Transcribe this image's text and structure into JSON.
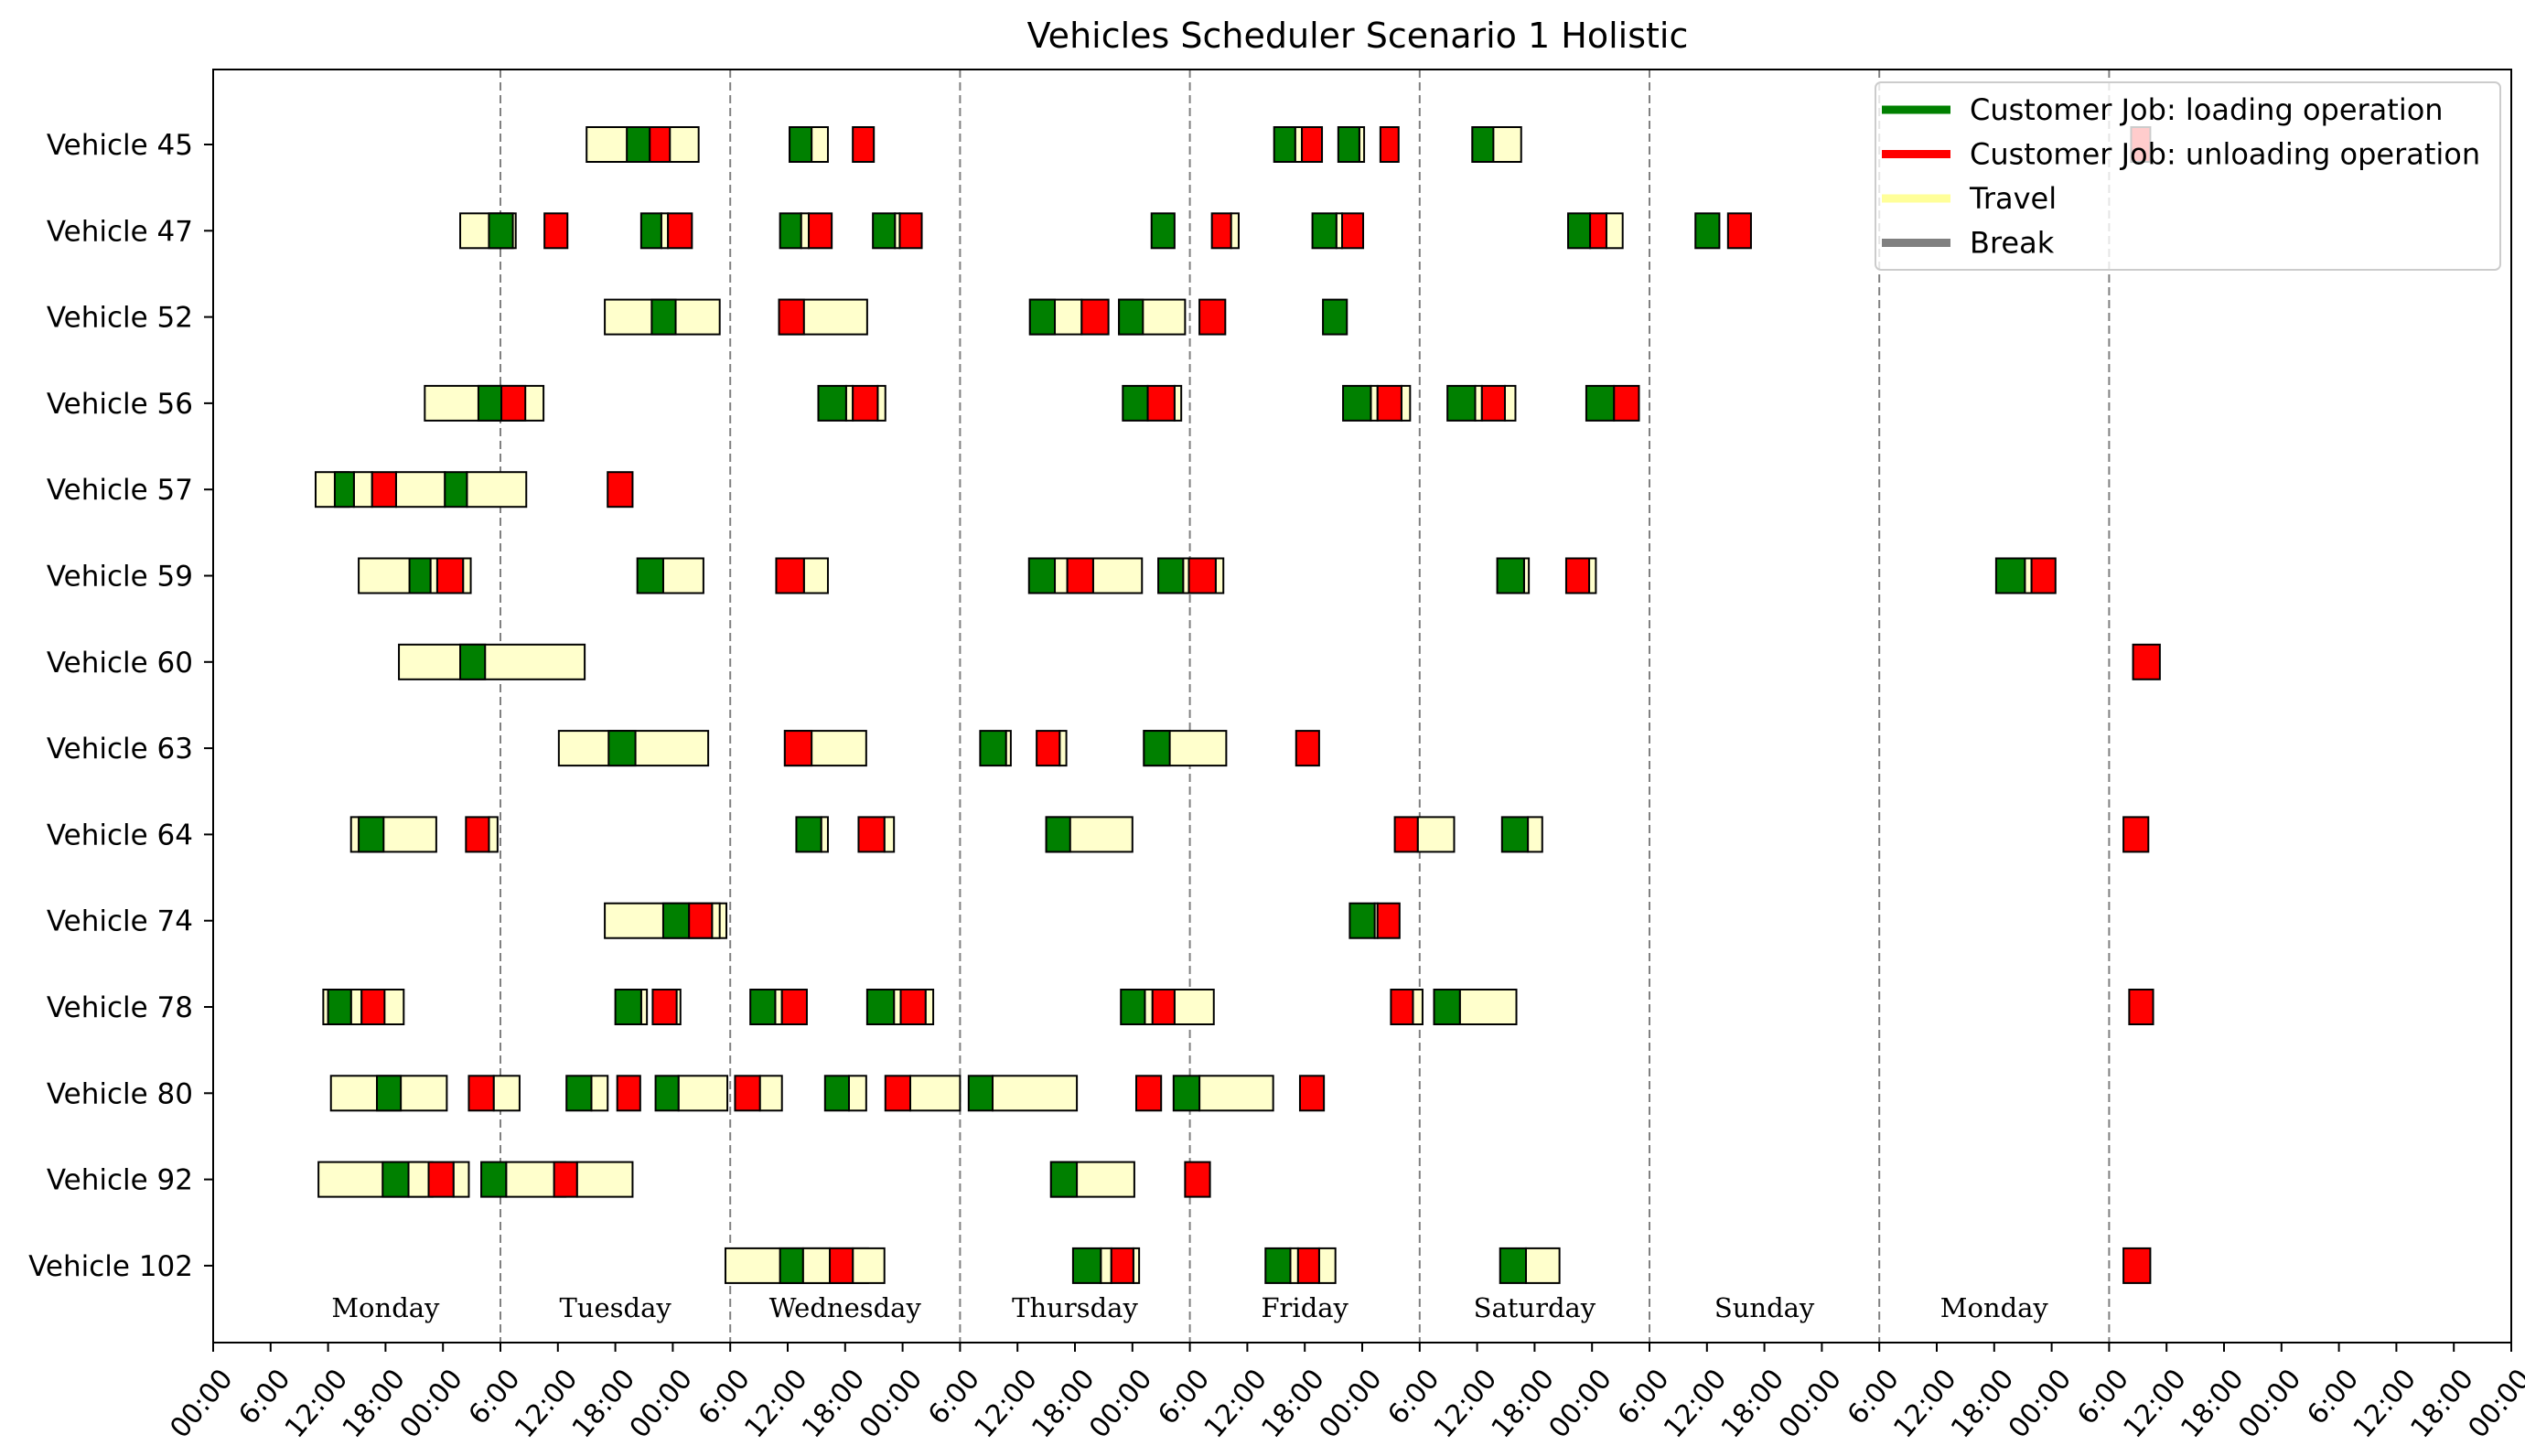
{
  "chart_data": {
    "type": "gantt",
    "title": "Vehicles Scheduler Scenario 1  Holistic",
    "x_unit": "hours from Monday 00:00",
    "xlim": [
      -30,
      210
    ],
    "x_ticks": [
      -30,
      -24,
      -18,
      -12,
      -6,
      0,
      6,
      12,
      18,
      24,
      30,
      36,
      42,
      48,
      54,
      60,
      66,
      72,
      78,
      84,
      90,
      96,
      102,
      108,
      114,
      120,
      126,
      132,
      138,
      144,
      150,
      156,
      162,
      168,
      174,
      180,
      186,
      192,
      198,
      204,
      210
    ],
    "x_tick_labels": [
      "00:00",
      "6:00",
      "12:00",
      "18:00",
      "00:00",
      "6:00",
      "12:00",
      "18:00",
      "00:00",
      "6:00",
      "12:00",
      "18:00",
      "00:00",
      "6:00",
      "12:00",
      "18:00",
      "00:00",
      "6:00",
      "12:00",
      "18:00",
      "00:00",
      "6:00",
      "12:00",
      "18:00",
      "00:00",
      "6:00",
      "12:00",
      "18:00",
      "00:00",
      "6:00",
      "12:00",
      "18:00",
      "00:00",
      "6:00",
      "12:00",
      "18:00",
      "00:00",
      "6:00",
      "12:00",
      "18:00",
      "00:00"
    ],
    "day_dividers": [
      0,
      24,
      48,
      72,
      96,
      120,
      144,
      168
    ],
    "days": [
      {
        "name": "Monday",
        "at": -12
      },
      {
        "name": "Tuesday",
        "at": 12
      },
      {
        "name": "Wednesday",
        "at": 36
      },
      {
        "name": "Thursday",
        "at": 60
      },
      {
        "name": "Friday",
        "at": 84
      },
      {
        "name": "Saturday",
        "at": 108
      },
      {
        "name": "Sunday",
        "at": 132
      },
      {
        "name": "Monday",
        "at": 156
      }
    ],
    "colors": {
      "load": "#008000",
      "unload": "#ff0000",
      "travel": "#ffffcc",
      "edge": "#000000",
      "divider": "#808080"
    },
    "legend": {
      "position": "top-right",
      "entries": [
        {
          "label": "Customer Job: loading operation",
          "color": "#008000"
        },
        {
          "label": "Customer Job: unloading operation",
          "color": "#ff0000"
        },
        {
          "label": "Travel",
          "color": "#ffff99"
        },
        {
          "label": "Break",
          "color": "#808080"
        }
      ]
    },
    "vehicles": [
      {
        "name": "Vehicle 45",
        "segments": [
          [
            "T",
            9,
            20.7
          ],
          [
            "L",
            13.2,
            15.6
          ],
          [
            "U",
            15.6,
            17.7
          ],
          [
            "T",
            30.2,
            34.2
          ],
          [
            "L",
            30.2,
            32.5
          ],
          [
            "U",
            36.8,
            39
          ],
          [
            "L",
            80.8,
            83
          ],
          [
            "T",
            83,
            83.7
          ],
          [
            "U",
            83.7,
            85.8
          ],
          [
            "L",
            87.5,
            89.7
          ],
          [
            "T",
            89.7,
            90.2
          ],
          [
            "U",
            91.9,
            93.8
          ],
          [
            "T",
            101.5,
            106.6
          ],
          [
            "L",
            101.5,
            103.7
          ],
          [
            "U",
            170.3,
            172.3
          ]
        ]
      },
      {
        "name": "Vehicle 47",
        "segments": [
          [
            "T",
            -4.2,
            1.6
          ],
          [
            "L",
            -1.2,
            1.3
          ],
          [
            "U",
            4.6,
            7
          ],
          [
            "L",
            14.7,
            16.8
          ],
          [
            "T",
            16.8,
            17.5
          ],
          [
            "U",
            17.5,
            20
          ],
          [
            "L",
            29.2,
            31.4
          ],
          [
            "T",
            31.4,
            32.2
          ],
          [
            "U",
            32.2,
            34.6
          ],
          [
            "L",
            38.9,
            41.2
          ],
          [
            "T",
            41.2,
            41.7
          ],
          [
            "U",
            41.7,
            44
          ],
          [
            "L",
            68,
            70.4
          ],
          [
            "U",
            74.3,
            76.3
          ],
          [
            "T",
            76.3,
            77.1
          ],
          [
            "L",
            84.8,
            87.3
          ],
          [
            "T",
            87.3,
            87.9
          ],
          [
            "U",
            87.9,
            90.1
          ],
          [
            "L",
            111.5,
            113.8
          ],
          [
            "U",
            113.8,
            115.5
          ],
          [
            "T",
            115.5,
            117.2
          ],
          [
            "L",
            124.8,
            127.3
          ],
          [
            "U",
            128.2,
            130.6
          ]
        ]
      },
      {
        "name": "Vehicle 52",
        "segments": [
          [
            "T",
            10.9,
            22.9
          ],
          [
            "L",
            15.8,
            18.3
          ],
          [
            "T",
            29.1,
            38.3
          ],
          [
            "U",
            29.1,
            31.7
          ],
          [
            "T",
            55.3,
            60.7
          ],
          [
            "L",
            55.3,
            57.9
          ],
          [
            "U",
            60.7,
            63.5
          ],
          [
            "T",
            64.6,
            71.5
          ],
          [
            "L",
            64.6,
            67.1
          ],
          [
            "U",
            73,
            75.7
          ],
          [
            "L",
            85.9,
            88.4
          ]
        ]
      },
      {
        "name": "Vehicle 56",
        "segments": [
          [
            "T",
            -7.9,
            4.5
          ],
          [
            "L",
            -2.3,
            0.1
          ],
          [
            "U",
            0.1,
            2.6
          ],
          [
            "L",
            33.2,
            36.1
          ],
          [
            "T",
            36.1,
            36.8
          ],
          [
            "U",
            36.8,
            39.4
          ],
          [
            "T",
            39.4,
            40.2
          ],
          [
            "L",
            65,
            67.6
          ],
          [
            "U",
            67.6,
            70.4
          ],
          [
            "T",
            70.4,
            71.1
          ],
          [
            "L",
            88,
            90.9
          ],
          [
            "T",
            90.9,
            91.6
          ],
          [
            "U",
            91.6,
            94.1
          ],
          [
            "T",
            94.1,
            95
          ],
          [
            "L",
            98.9,
            101.8
          ],
          [
            "T",
            101.8,
            102.5
          ],
          [
            "U",
            102.5,
            104.9
          ],
          [
            "T",
            104.9,
            106
          ],
          [
            "L",
            113.4,
            116.3
          ],
          [
            "U",
            116.3,
            118.9
          ]
        ]
      },
      {
        "name": "Vehicle 57",
        "segments": [
          [
            "T",
            -19.3,
            -15.8
          ],
          [
            "L",
            -17.3,
            -15.3
          ],
          [
            "T",
            -15.3,
            -13.4
          ],
          [
            "U",
            -13.4,
            -10.9
          ],
          [
            "T",
            -10.9,
            -5.8
          ],
          [
            "L",
            -5.8,
            -3.5
          ],
          [
            "T",
            -3.5,
            2.7
          ],
          [
            "U",
            11.2,
            13.8
          ]
        ]
      },
      {
        "name": "Vehicle 59",
        "segments": [
          [
            "T",
            -14.8,
            -9.3
          ],
          [
            "L",
            -9.5,
            -7.3
          ],
          [
            "T",
            -7.3,
            -6.6
          ],
          [
            "U",
            -6.6,
            -3.9
          ],
          [
            "T",
            -3.9,
            -3.1
          ],
          [
            "L",
            14.3,
            17
          ],
          [
            "T",
            17,
            21.2
          ],
          [
            "U",
            28.8,
            31.7
          ],
          [
            "T",
            31.7,
            34.2
          ],
          [
            "L",
            55.2,
            57.9
          ],
          [
            "T",
            57.9,
            59.2
          ],
          [
            "U",
            59.2,
            61.9
          ],
          [
            "T",
            61.9,
            67
          ],
          [
            "L",
            68.7,
            71.3
          ],
          [
            "T",
            71.3,
            71.9
          ],
          [
            "U",
            71.9,
            74.7
          ],
          [
            "T",
            74.7,
            75.5
          ],
          [
            "L",
            104.1,
            106.9
          ],
          [
            "T",
            106.9,
            107.4
          ],
          [
            "U",
            111.3,
            113.7
          ],
          [
            "T",
            113.7,
            114.4
          ],
          [
            "L",
            156.2,
            159.2
          ],
          [
            "T",
            159.2,
            159.9
          ],
          [
            "U",
            159.9,
            162.4
          ]
        ]
      },
      {
        "name": "Vehicle 60",
        "segments": [
          [
            "T",
            -10.6,
            8.8
          ],
          [
            "L",
            -4.2,
            -1.6
          ],
          [
            "U",
            170.5,
            173.3
          ]
        ]
      },
      {
        "name": "Vehicle 63",
        "segments": [
          [
            "T",
            6.1,
            21.7
          ],
          [
            "L",
            11.3,
            14.1
          ],
          [
            "T",
            29.7,
            38.2
          ],
          [
            "U",
            29.7,
            32.5
          ],
          [
            "L",
            50.1,
            52.8
          ],
          [
            "T",
            52.8,
            53.3
          ],
          [
            "U",
            56,
            58.4
          ],
          [
            "T",
            58.4,
            59.1
          ],
          [
            "T",
            67.2,
            75.8
          ],
          [
            "L",
            67.2,
            69.9
          ],
          [
            "U",
            83.1,
            85.5
          ]
        ]
      },
      {
        "name": "Vehicle 64",
        "segments": [
          [
            "T",
            -15.6,
            -6.7
          ],
          [
            "L",
            -14.8,
            -12.2
          ],
          [
            "U",
            -3.6,
            -1.2
          ],
          [
            "T",
            -1.2,
            -0.3
          ],
          [
            "L",
            30.9,
            33.5
          ],
          [
            "T",
            33.5,
            34.2
          ],
          [
            "U",
            37.4,
            40.1
          ],
          [
            "T",
            40.1,
            41.1
          ],
          [
            "T",
            57,
            66
          ],
          [
            "L",
            57,
            59.5
          ],
          [
            "U",
            93.4,
            95.8
          ],
          [
            "T",
            95.8,
            99.6
          ],
          [
            "L",
            104.6,
            107.3
          ],
          [
            "T",
            107.3,
            108.8
          ],
          [
            "U",
            169.5,
            172.1
          ]
        ]
      },
      {
        "name": "Vehicle 74",
        "segments": [
          [
            "T",
            10.9,
            23.6
          ],
          [
            "L",
            17,
            19.7
          ],
          [
            "U",
            19.7,
            22.1
          ],
          [
            "T",
            22.1,
            22.9
          ],
          [
            "L",
            88.7,
            91.3
          ],
          [
            "T",
            91.3,
            91.6
          ],
          [
            "U",
            91.6,
            93.9
          ]
        ]
      },
      {
        "name": "Vehicle 78",
        "segments": [
          [
            "T",
            -18.5,
            -10.1
          ],
          [
            "L",
            -18,
            -15.6
          ],
          [
            "T",
            -15.6,
            -14.5
          ],
          [
            "U",
            -14.5,
            -12.1
          ],
          [
            "L",
            12,
            14.7
          ],
          [
            "T",
            14.7,
            15.3
          ],
          [
            "U",
            15.9,
            18.4
          ],
          [
            "T",
            18.4,
            18.8
          ],
          [
            "L",
            26.1,
            28.7
          ],
          [
            "T",
            28.7,
            29.4
          ],
          [
            "U",
            29.4,
            32
          ],
          [
            "L",
            38.3,
            41.1
          ],
          [
            "T",
            41.1,
            41.8
          ],
          [
            "U",
            41.8,
            44.4
          ],
          [
            "T",
            44.4,
            45.2
          ],
          [
            "L",
            64.8,
            67.3
          ],
          [
            "T",
            67.3,
            68.1
          ],
          [
            "U",
            68.1,
            70.4
          ],
          [
            "T",
            70.4,
            74.5
          ],
          [
            "U",
            93,
            95.3
          ],
          [
            "T",
            95.3,
            96.3
          ],
          [
            "L",
            97.5,
            100.2
          ],
          [
            "T",
            100.2,
            106.1
          ],
          [
            "U",
            170.1,
            172.6
          ]
        ]
      },
      {
        "name": "Vehicle 80",
        "segments": [
          [
            "T",
            -17.7,
            -5.6
          ],
          [
            "L",
            -12.9,
            -10.4
          ],
          [
            "U",
            -3.3,
            -0.7
          ],
          [
            "T",
            -0.7,
            2
          ],
          [
            "L",
            6.9,
            9.5
          ],
          [
            "T",
            9.5,
            11.2
          ],
          [
            "U",
            12.2,
            14.6
          ],
          [
            "L",
            16.2,
            18.6
          ],
          [
            "T",
            18.6,
            23.7
          ],
          [
            "U",
            24.5,
            27.1
          ],
          [
            "T",
            27.1,
            29.4
          ],
          [
            "L",
            33.9,
            36.4
          ],
          [
            "T",
            36.4,
            38.2
          ],
          [
            "U",
            40.2,
            42.8
          ],
          [
            "T",
            42.8,
            48
          ],
          [
            "L",
            48.9,
            51.4
          ],
          [
            "T",
            51.4,
            60.2
          ],
          [
            "U",
            66.4,
            69
          ],
          [
            "L",
            70.3,
            73
          ],
          [
            "T",
            73,
            80.7
          ],
          [
            "U",
            83.5,
            86
          ]
        ]
      },
      {
        "name": "Vehicle 92",
        "segments": [
          [
            "T",
            -19,
            -7.8
          ],
          [
            "L",
            -12.3,
            -9.6
          ],
          [
            "T",
            -9.6,
            -7.1
          ],
          [
            "U",
            -7.5,
            -4.9
          ],
          [
            "T",
            -4.9,
            -3.3
          ],
          [
            "L",
            -2,
            0.6
          ],
          [
            "T",
            0.6,
            6.8
          ],
          [
            "U",
            5.6,
            8
          ],
          [
            "T",
            8,
            13.8
          ],
          [
            "T",
            57.5,
            66.2
          ],
          [
            "L",
            57.5,
            60.2
          ],
          [
            "U",
            71.5,
            74.1
          ]
        ]
      },
      {
        "name": "Vehicle 102",
        "segments": [
          [
            "T",
            23.5,
            38.4
          ],
          [
            "L",
            29.2,
            31.6
          ],
          [
            "T",
            31.6,
            34.4
          ],
          [
            "U",
            34.4,
            36.8
          ],
          [
            "T",
            36.8,
            40.1
          ],
          [
            "L",
            59.8,
            62.7
          ],
          [
            "T",
            62.7,
            63.8
          ],
          [
            "U",
            63.8,
            66.1
          ],
          [
            "T",
            66.1,
            66.7
          ],
          [
            "L",
            79.9,
            82.5
          ],
          [
            "T",
            82.5,
            83.3
          ],
          [
            "U",
            83.3,
            85.5
          ],
          [
            "T",
            85.5,
            87.2
          ],
          [
            "L",
            104.4,
            107.1
          ],
          [
            "T",
            107.1,
            110.6
          ],
          [
            "U",
            169.5,
            172.3
          ]
        ]
      }
    ]
  }
}
